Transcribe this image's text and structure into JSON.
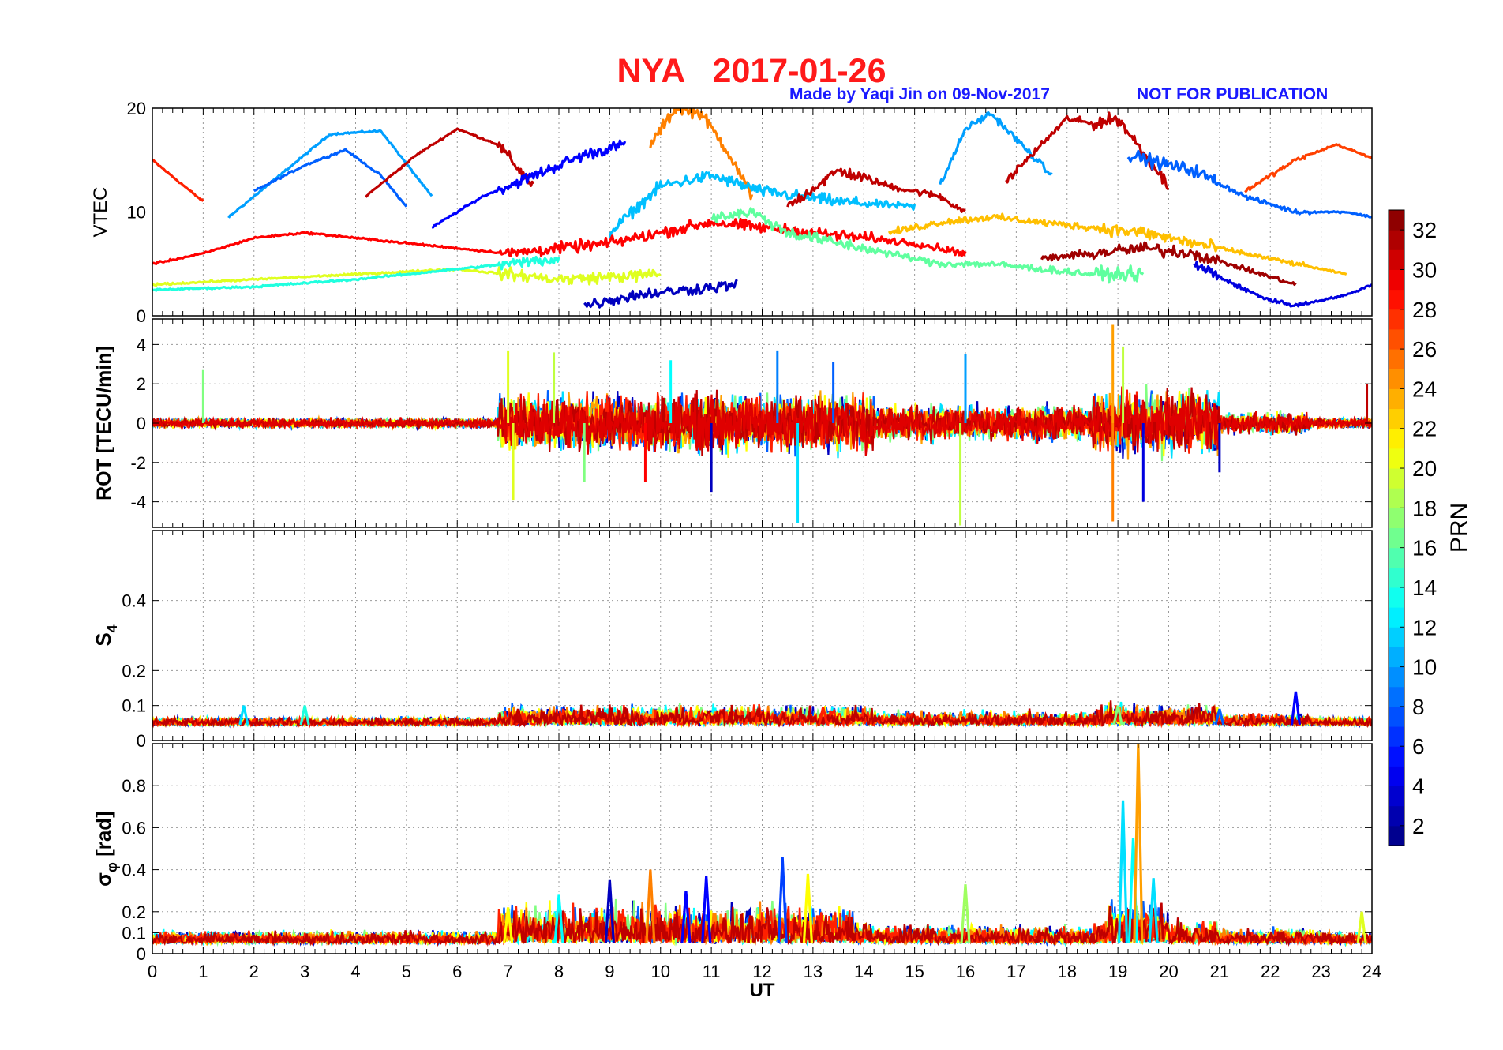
{
  "header": {
    "title": "NYA   2017-01-26",
    "credit": "Made by Yaqi Jin on 09-Nov-2017",
    "notice": "NOT FOR PUBLICATION"
  },
  "colors": {
    "title": "#ff1a1a",
    "credit": "#1a1aff",
    "grid": "#9a9a9a"
  },
  "chart_data": [
    {
      "type": "line",
      "panel": "vtec",
      "ylabel": "VTEC",
      "ylim": [
        0,
        20
      ],
      "yticks": [
        0,
        10,
        20
      ],
      "xlim": [
        0,
        24
      ],
      "grid": true,
      "series_summary": "one line per GPS satellite PRN 1-32, coloured by PRN",
      "series": [
        {
          "prn": 28,
          "x": [
            0,
            0.5,
            1.0
          ],
          "y": [
            15,
            13,
            11
          ]
        },
        {
          "prn": 10,
          "x": [
            1.5,
            2.5,
            3.5,
            4.5,
            5.5
          ],
          "y": [
            9.5,
            13.5,
            17.5,
            17.8,
            11.5
          ]
        },
        {
          "prn": 8,
          "x": [
            2.0,
            3.0,
            3.8,
            4.5,
            5.0
          ],
          "y": [
            12,
            14.5,
            16,
            13.5,
            10.5
          ]
        },
        {
          "prn": 31,
          "x": [
            4.2,
            5.2,
            6.0,
            6.8,
            7.5
          ],
          "y": [
            11.5,
            15.5,
            18,
            16.5,
            12.5
          ]
        },
        {
          "prn": 5,
          "x": [
            5.5,
            6.5,
            7.5,
            8.5,
            9.3
          ],
          "y": [
            8.5,
            11.5,
            13.5,
            15.5,
            16.5
          ]
        },
        {
          "prn": 25,
          "x": [
            9.8,
            10.3,
            10.8,
            11.3,
            11.8
          ],
          "y": [
            16.5,
            20,
            19.5,
            16,
            11.5
          ]
        },
        {
          "prn": 11,
          "x": [
            9.0,
            10.0,
            11.0,
            12.0,
            13.5,
            15.0
          ],
          "y": [
            8,
            12.5,
            13.5,
            12,
            11,
            10.5
          ]
        },
        {
          "prn": 31,
          "x": [
            12.5,
            13.5,
            14.5,
            15.5,
            16.0
          ],
          "y": [
            10.5,
            14,
            12.5,
            11.5,
            10
          ]
        },
        {
          "prn": 10,
          "x": [
            15.5,
            16.0,
            16.5,
            17.0,
            17.7
          ],
          "y": [
            12.5,
            18,
            19.5,
            17,
            13.5
          ]
        },
        {
          "prn": 31,
          "x": [
            16.8,
            17.5,
            18.0,
            18.5,
            19.0,
            20.0
          ],
          "y": [
            13,
            16.5,
            19,
            18.5,
            19,
            12.5
          ]
        },
        {
          "prn": 8,
          "x": [
            19.2,
            20.0,
            20.5,
            21.5,
            22.5,
            23.5,
            24.0
          ],
          "y": [
            15.5,
            14.5,
            14,
            11.5,
            10,
            10,
            9.5
          ]
        },
        {
          "prn": 27,
          "x": [
            21.5,
            22.5,
            23.3,
            24.0
          ],
          "y": [
            12,
            15,
            16.5,
            15.2
          ]
        },
        {
          "prn": 29,
          "x": [
            0,
            1.0,
            2.0,
            3.0,
            4.0,
            5.0,
            6.0,
            7.0,
            8.0,
            9.0,
            10.0,
            11.0,
            12.0,
            13.0,
            14.0,
            15.0,
            16.0
          ],
          "y": [
            5,
            6,
            7.5,
            8,
            7.5,
            7,
            6.5,
            6,
            6.5,
            7,
            8,
            9,
            8.5,
            8,
            7.5,
            7,
            6
          ]
        },
        {
          "prn": 23,
          "x": [
            14.5,
            15.5,
            16.5,
            17.5,
            18.5,
            19.5,
            20.5,
            21.5,
            22.5,
            23.5
          ],
          "y": [
            8,
            9,
            9.5,
            9,
            8.5,
            8,
            7,
            6,
            5,
            4
          ]
        },
        {
          "prn": 20,
          "x": [
            0,
            2.0,
            4.0,
            6.0,
            8.0,
            10.0
          ],
          "y": [
            3,
            3.5,
            4,
            4.5,
            3.5,
            4
          ]
        },
        {
          "prn": 14,
          "x": [
            0,
            2.0,
            4.0,
            6.0,
            8.0
          ],
          "y": [
            2.5,
            2.8,
            3.5,
            4.5,
            5.5
          ]
        },
        {
          "prn": 3,
          "x": [
            8.5,
            9.5,
            10.5,
            11.5
          ],
          "y": [
            1,
            2,
            2.5,
            3
          ]
        },
        {
          "prn": 32,
          "x": [
            17.5,
            18.5,
            19.5,
            20.5,
            21.5,
            22.5
          ],
          "y": [
            5.5,
            6,
            6.5,
            6,
            4.5,
            3
          ]
        },
        {
          "prn": 4,
          "x": [
            20.5,
            21.5,
            22.0,
            22.5,
            23.0,
            23.5,
            24.0
          ],
          "y": [
            5,
            2.5,
            1.5,
            1,
            1.5,
            2,
            3
          ]
        },
        {
          "prn": 16,
          "x": [
            11.0,
            11.8,
            12.5,
            13.5,
            14.5,
            15.5,
            16.5,
            17.5,
            18.5,
            19.5
          ],
          "y": [
            9.5,
            10,
            8,
            7,
            6,
            5,
            5,
            4.5,
            4,
            4
          ]
        }
      ]
    },
    {
      "type": "line",
      "panel": "rot",
      "ylabel": "ROT [TECU/min]",
      "ylim": [
        -5.3,
        5.3
      ],
      "yticks": [
        -4,
        -2,
        0,
        2,
        4
      ],
      "xlim": [
        0,
        24
      ],
      "grid": true,
      "series_summary": "rate of TEC per PRN, near 0 with bursts between 7-14 UT and 18-21 UT",
      "bursts": [
        {
          "t": 1.0,
          "amp": 2.7,
          "prn": 17
        },
        {
          "t": 7.0,
          "amp": 3.7,
          "prn": 20
        },
        {
          "t": 7.1,
          "amp": -3.9,
          "prn": 20
        },
        {
          "t": 7.9,
          "amp": 3.6,
          "prn": 19
        },
        {
          "t": 8.5,
          "amp": -3.0,
          "prn": 17
        },
        {
          "t": 9.7,
          "amp": -3.0,
          "prn": 29
        },
        {
          "t": 10.2,
          "amp": 3.2,
          "prn": 13
        },
        {
          "t": 11.0,
          "amp": -3.5,
          "prn": 3
        },
        {
          "t": 12.3,
          "amp": 3.7,
          "prn": 9
        },
        {
          "t": 12.7,
          "amp": -5.1,
          "prn": 12
        },
        {
          "t": 13.4,
          "amp": 3.1,
          "prn": 8
        },
        {
          "t": 15.9,
          "amp": -5.2,
          "prn": 19
        },
        {
          "t": 16.0,
          "amp": 3.5,
          "prn": 10
        },
        {
          "t": 18.9,
          "amp": 5.0,
          "prn": 24
        },
        {
          "t": 18.9,
          "amp": -5.0,
          "prn": 25
        },
        {
          "t": 19.1,
          "amp": 3.9,
          "prn": 19
        },
        {
          "t": 19.5,
          "amp": -4.0,
          "prn": 4
        },
        {
          "t": 21.0,
          "amp": -2.5,
          "prn": 3
        },
        {
          "t": 23.9,
          "amp": 2.0,
          "prn": 31
        }
      ]
    },
    {
      "type": "line",
      "panel": "s4",
      "ylabel": "S4",
      "ylim": [
        0,
        0.6
      ],
      "yticks": [
        0,
        0.1,
        0.2,
        0.4
      ],
      "xlim": [
        0,
        24
      ],
      "grid": true,
      "series_summary": "S4 index per PRN, mostly 0.02-0.07",
      "spikes": [
        {
          "t": 1.8,
          "amp": 0.1,
          "prn": 12
        },
        {
          "t": 3.0,
          "amp": 0.1,
          "prn": 14
        },
        {
          "t": 7.2,
          "amp": 0.09,
          "prn": 31
        },
        {
          "t": 9.3,
          "amp": 0.095,
          "prn": 31
        },
        {
          "t": 13.2,
          "amp": 0.095,
          "prn": 28
        },
        {
          "t": 19.0,
          "amp": 0.1,
          "prn": 17
        },
        {
          "t": 21.0,
          "amp": 0.09,
          "prn": 8
        },
        {
          "t": 22.5,
          "amp": 0.14,
          "prn": 5
        }
      ]
    },
    {
      "type": "line",
      "panel": "sigma_phi",
      "ylabel": "σ_φ [rad]",
      "ylim": [
        0,
        1.0
      ],
      "yticks": [
        0,
        0.1,
        0.2,
        0.4,
        0.6,
        0.8
      ],
      "xlim": [
        0,
        24
      ],
      "xlabel": "UT",
      "xticks": [
        0,
        1,
        2,
        3,
        4,
        5,
        6,
        7,
        8,
        9,
        10,
        11,
        12,
        13,
        14,
        15,
        16,
        17,
        18,
        19,
        20,
        21,
        22,
        23,
        24
      ],
      "grid": true,
      "series_summary": "phase scintillation per PRN, base ~0.05 rad, enhanced 7-13.5 UT, peak near 19.4 UT",
      "spikes": [
        {
          "t": 7.0,
          "amp": 0.22,
          "prn": 21
        },
        {
          "t": 8.0,
          "amp": 0.28,
          "prn": 13
        },
        {
          "t": 9.0,
          "amp": 0.35,
          "prn": 3
        },
        {
          "t": 9.8,
          "amp": 0.4,
          "prn": 25
        },
        {
          "t": 10.5,
          "amp": 0.3,
          "prn": 5
        },
        {
          "t": 10.9,
          "amp": 0.37,
          "prn": 5
        },
        {
          "t": 12.4,
          "amp": 0.46,
          "prn": 7
        },
        {
          "t": 12.9,
          "amp": 0.38,
          "prn": 21
        },
        {
          "t": 16.0,
          "amp": 0.33,
          "prn": 18
        },
        {
          "t": 19.1,
          "amp": 0.73,
          "prn": 12
        },
        {
          "t": 19.3,
          "amp": 0.55,
          "prn": 13
        },
        {
          "t": 19.4,
          "amp": 1.0,
          "prn": 24
        },
        {
          "t": 19.7,
          "amp": 0.36,
          "prn": 12
        },
        {
          "t": 23.8,
          "amp": 0.2,
          "prn": 20
        }
      ]
    }
  ],
  "colorbar": {
    "label": "PRN",
    "range": [
      1,
      33
    ],
    "ticks": [
      2,
      4,
      6,
      8,
      10,
      12,
      14,
      16,
      18,
      20,
      22,
      24,
      26,
      28,
      30,
      32
    ],
    "colormap": "jet"
  }
}
